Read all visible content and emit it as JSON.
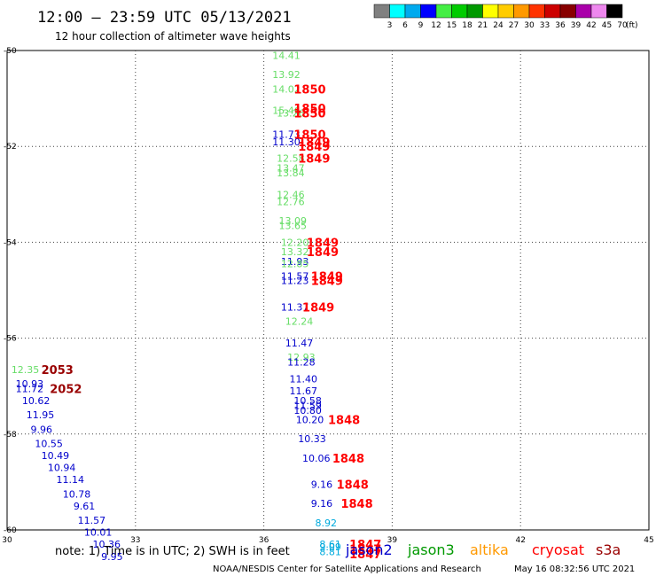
{
  "title": "12:00 – 23:59 UTC 05/13/2021",
  "subtitle": "12 hour collection of altimeter wave heights",
  "note": "note:  1) Time is in UTC;  2) SWH is in feet",
  "credit": "NOAA/NESDIS Center for Satellite Applications and Research",
  "timestamp": "May 16 08:32:56 UTC 2021",
  "colors": {
    "jason2": "#0000cc",
    "jason3": "#009900",
    "altika": "#ff9900",
    "cryosat": "#ff0000",
    "s3a": "#990000",
    "light_green": "#66dd66",
    "cyan": "#00aadd"
  },
  "chart_data": {
    "type": "scatter",
    "title": "12:00 – 23:59 UTC 05/13/2021",
    "subtitle": "12 hour collection of altimeter wave heights",
    "xlim": [
      30,
      45
    ],
    "ylim": [
      -60,
      -50
    ],
    "grid": true,
    "x_ticks": [
      "30",
      "33",
      "36",
      "39",
      "42",
      "45"
    ],
    "y_ticks": [
      "-50",
      "-52",
      "-54",
      "-56",
      "-58",
      "-60"
    ],
    "legend": {
      "placement": "top-right",
      "labels": [
        "3",
        "6",
        "9",
        "12",
        "15",
        "18",
        "21",
        "24",
        "27",
        "30",
        "33",
        "36",
        "39",
        "42",
        "45",
        "70"
      ],
      "unit": "(ft)",
      "colors": [
        "#808080",
        "#00ffff",
        "#00aaee",
        "#0000ff",
        "#44ee44",
        "#00cc00",
        "#009900",
        "#ffff00",
        "#ffcc00",
        "#ff9900",
        "#ff3300",
        "#cc0000",
        "#880000",
        "#aa00aa",
        "#ee88ee",
        "#000000"
      ]
    },
    "satellites": [
      {
        "name": "jason2",
        "color": "#0000cc"
      },
      {
        "name": "jason3",
        "color": "#009900"
      },
      {
        "name": "altika",
        "color": "#ff9900"
      },
      {
        "name": "cryosat",
        "color": "#ff0000"
      },
      {
        "name": "s3a",
        "color": "#990000"
      }
    ],
    "wave_heights": [
      {
        "x": 36.2,
        "y": -50.1,
        "label": "14.41",
        "color": "#66dd66"
      },
      {
        "x": 36.2,
        "y": -50.5,
        "label": "13.92",
        "color": "#66dd66"
      },
      {
        "x": 36.2,
        "y": -50.8,
        "label": "14.02",
        "color": "#66dd66"
      },
      {
        "x": 36.2,
        "y": -51.25,
        "label": "15.46",
        "color": "#66dd66"
      },
      {
        "x": 36.3,
        "y": -51.3,
        "label": "13.26",
        "color": "#66dd66"
      },
      {
        "x": 36.2,
        "y": -51.75,
        "label": "11.73",
        "color": "#0000cc"
      },
      {
        "x": 36.2,
        "y": -51.9,
        "label": "11.30",
        "color": "#0000cc"
      },
      {
        "x": 36.3,
        "y": -52.25,
        "label": "12.58",
        "color": "#66dd66"
      },
      {
        "x": 36.3,
        "y": -52.45,
        "label": "13.47",
        "color": "#66dd66"
      },
      {
        "x": 36.3,
        "y": -52.55,
        "label": "13.84",
        "color": "#66dd66"
      },
      {
        "x": 36.3,
        "y": -53.0,
        "label": "12.46",
        "color": "#66dd66"
      },
      {
        "x": 36.3,
        "y": -53.15,
        "label": "12.76",
        "color": "#66dd66"
      },
      {
        "x": 36.35,
        "y": -53.55,
        "label": "13.09",
        "color": "#66dd66"
      },
      {
        "x": 36.35,
        "y": -53.65,
        "label": "13.65",
        "color": "#66dd66"
      },
      {
        "x": 36.4,
        "y": -54.0,
        "label": "12.20",
        "color": "#66dd66"
      },
      {
        "x": 36.4,
        "y": -54.2,
        "label": "13.32",
        "color": "#66dd66"
      },
      {
        "x": 36.4,
        "y": -54.4,
        "label": "11.93",
        "color": "#0000cc"
      },
      {
        "x": 36.4,
        "y": -54.45,
        "label": "12.85",
        "color": "#66dd66"
      },
      {
        "x": 36.4,
        "y": -54.7,
        "label": "11.57",
        "color": "#0000cc"
      },
      {
        "x": 36.4,
        "y": -54.8,
        "label": "11.23",
        "color": "#0000cc"
      },
      {
        "x": 36.4,
        "y": -55.35,
        "label": "11.37",
        "color": "#0000cc"
      },
      {
        "x": 36.5,
        "y": -55.65,
        "label": "12.24",
        "color": "#66dd66"
      },
      {
        "x": 36.5,
        "y": -56.1,
        "label": "11.47",
        "color": "#0000cc"
      },
      {
        "x": 36.55,
        "y": -56.4,
        "label": "12.93",
        "color": "#66dd66"
      },
      {
        "x": 36.55,
        "y": -56.5,
        "label": "11.28",
        "color": "#0000cc"
      },
      {
        "x": 36.6,
        "y": -56.85,
        "label": "11.40",
        "color": "#0000cc"
      },
      {
        "x": 36.6,
        "y": -57.1,
        "label": "11.67",
        "color": "#0000cc"
      },
      {
        "x": 36.7,
        "y": -57.3,
        "label": "10.58",
        "color": "#0000cc"
      },
      {
        "x": 36.7,
        "y": -57.4,
        "label": "11.59",
        "color": "#0000cc"
      },
      {
        "x": 36.7,
        "y": -57.5,
        "label": "10.80",
        "color": "#0000cc"
      },
      {
        "x": 36.75,
        "y": -57.7,
        "label": "10.20",
        "color": "#0000cc"
      },
      {
        "x": 36.8,
        "y": -58.1,
        "label": "10.33",
        "color": "#0000cc"
      },
      {
        "x": 36.9,
        "y": -58.5,
        "label": "10.06",
        "color": "#0000cc"
      },
      {
        "x": 37.1,
        "y": -59.05,
        "label": "9.16",
        "color": "#0000cc"
      },
      {
        "x": 37.1,
        "y": -59.45,
        "label": "9.16",
        "color": "#0000cc"
      },
      {
        "x": 37.2,
        "y": -59.85,
        "label": "8.92",
        "color": "#00aadd"
      },
      {
        "x": 37.3,
        "y": -60.3,
        "label": "8.61",
        "color": "#00aadd"
      },
      {
        "x": 37.3,
        "y": -60.35,
        "label": "9.09",
        "color": "#00aadd"
      },
      {
        "x": 37.3,
        "y": -60.45,
        "label": "8.81",
        "color": "#00aadd"
      },
      {
        "x": 30.1,
        "y": -56.65,
        "label": "12.35",
        "color": "#66dd66"
      },
      {
        "x": 30.2,
        "y": -56.95,
        "label": "10.93",
        "color": "#0000cc"
      },
      {
        "x": 30.2,
        "y": -57.05,
        "label": "11.72",
        "color": "#0000cc"
      },
      {
        "x": 30.35,
        "y": -57.3,
        "label": "10.62",
        "color": "#0000cc"
      },
      {
        "x": 30.45,
        "y": -57.6,
        "label": "11.95",
        "color": "#0000cc"
      },
      {
        "x": 30.55,
        "y": -57.9,
        "label": "9.96",
        "color": "#0000cc"
      },
      {
        "x": 30.65,
        "y": -58.2,
        "label": "10.55",
        "color": "#0000cc"
      },
      {
        "x": 30.8,
        "y": -58.45,
        "label": "10.49",
        "color": "#0000cc"
      },
      {
        "x": 30.95,
        "y": -58.7,
        "label": "10.94",
        "color": "#0000cc"
      },
      {
        "x": 31.15,
        "y": -58.95,
        "label": "11.14",
        "color": "#0000cc"
      },
      {
        "x": 31.3,
        "y": -59.25,
        "label": "10.78",
        "color": "#0000cc"
      },
      {
        "x": 31.55,
        "y": -59.5,
        "label": "9.61",
        "color": "#0000cc"
      },
      {
        "x": 31.65,
        "y": -59.8,
        "label": "11.57",
        "color": "#0000cc"
      },
      {
        "x": 31.8,
        "y": -60.05,
        "label": "10.01",
        "color": "#0000cc"
      },
      {
        "x": 32.0,
        "y": -60.3,
        "label": "10.36",
        "color": "#0000cc"
      },
      {
        "x": 32.2,
        "y": -60.55,
        "label": "9.95",
        "color": "#0000cc"
      }
    ],
    "times": [
      {
        "x": 36.7,
        "y": -50.8,
        "label": "1850",
        "color": "#ff0000"
      },
      {
        "x": 36.7,
        "y": -51.2,
        "label": "1850",
        "color": "#ff0000"
      },
      {
        "x": 36.7,
        "y": -51.3,
        "label": "1850",
        "color": "#ff0000"
      },
      {
        "x": 36.7,
        "y": -51.75,
        "label": "1850",
        "color": "#ff0000"
      },
      {
        "x": 36.8,
        "y": -51.9,
        "label": "1849",
        "color": "#ff0000"
      },
      {
        "x": 36.8,
        "y": -52.0,
        "label": "1849",
        "color": "#ff0000"
      },
      {
        "x": 36.8,
        "y": -52.25,
        "label": "1849",
        "color": "#ff0000"
      },
      {
        "x": 37.0,
        "y": -54.0,
        "label": "1849",
        "color": "#ff0000"
      },
      {
        "x": 37.0,
        "y": -54.2,
        "label": "1849",
        "color": "#ff0000"
      },
      {
        "x": 37.1,
        "y": -54.7,
        "label": "1849",
        "color": "#ff0000"
      },
      {
        "x": 37.1,
        "y": -54.8,
        "label": "1849",
        "color": "#ff0000"
      },
      {
        "x": 36.9,
        "y": -55.35,
        "label": "1849",
        "color": "#ff0000"
      },
      {
        "x": 37.5,
        "y": -57.7,
        "label": "1848",
        "color": "#ff0000"
      },
      {
        "x": 37.6,
        "y": -58.5,
        "label": "1848",
        "color": "#ff0000"
      },
      {
        "x": 37.7,
        "y": -59.05,
        "label": "1848",
        "color": "#ff0000"
      },
      {
        "x": 37.8,
        "y": -59.45,
        "label": "1848",
        "color": "#ff0000"
      },
      {
        "x": 38.0,
        "y": -60.3,
        "label": "1847",
        "color": "#ff0000"
      },
      {
        "x": 38.0,
        "y": -60.4,
        "label": "1847",
        "color": "#ff0000"
      },
      {
        "x": 38.0,
        "y": -60.5,
        "label": "1847",
        "color": "#ff0000"
      },
      {
        "x": 30.8,
        "y": -56.65,
        "label": "2053",
        "color": "#990000"
      },
      {
        "x": 31.0,
        "y": -57.05,
        "label": "2052",
        "color": "#990000"
      }
    ]
  }
}
